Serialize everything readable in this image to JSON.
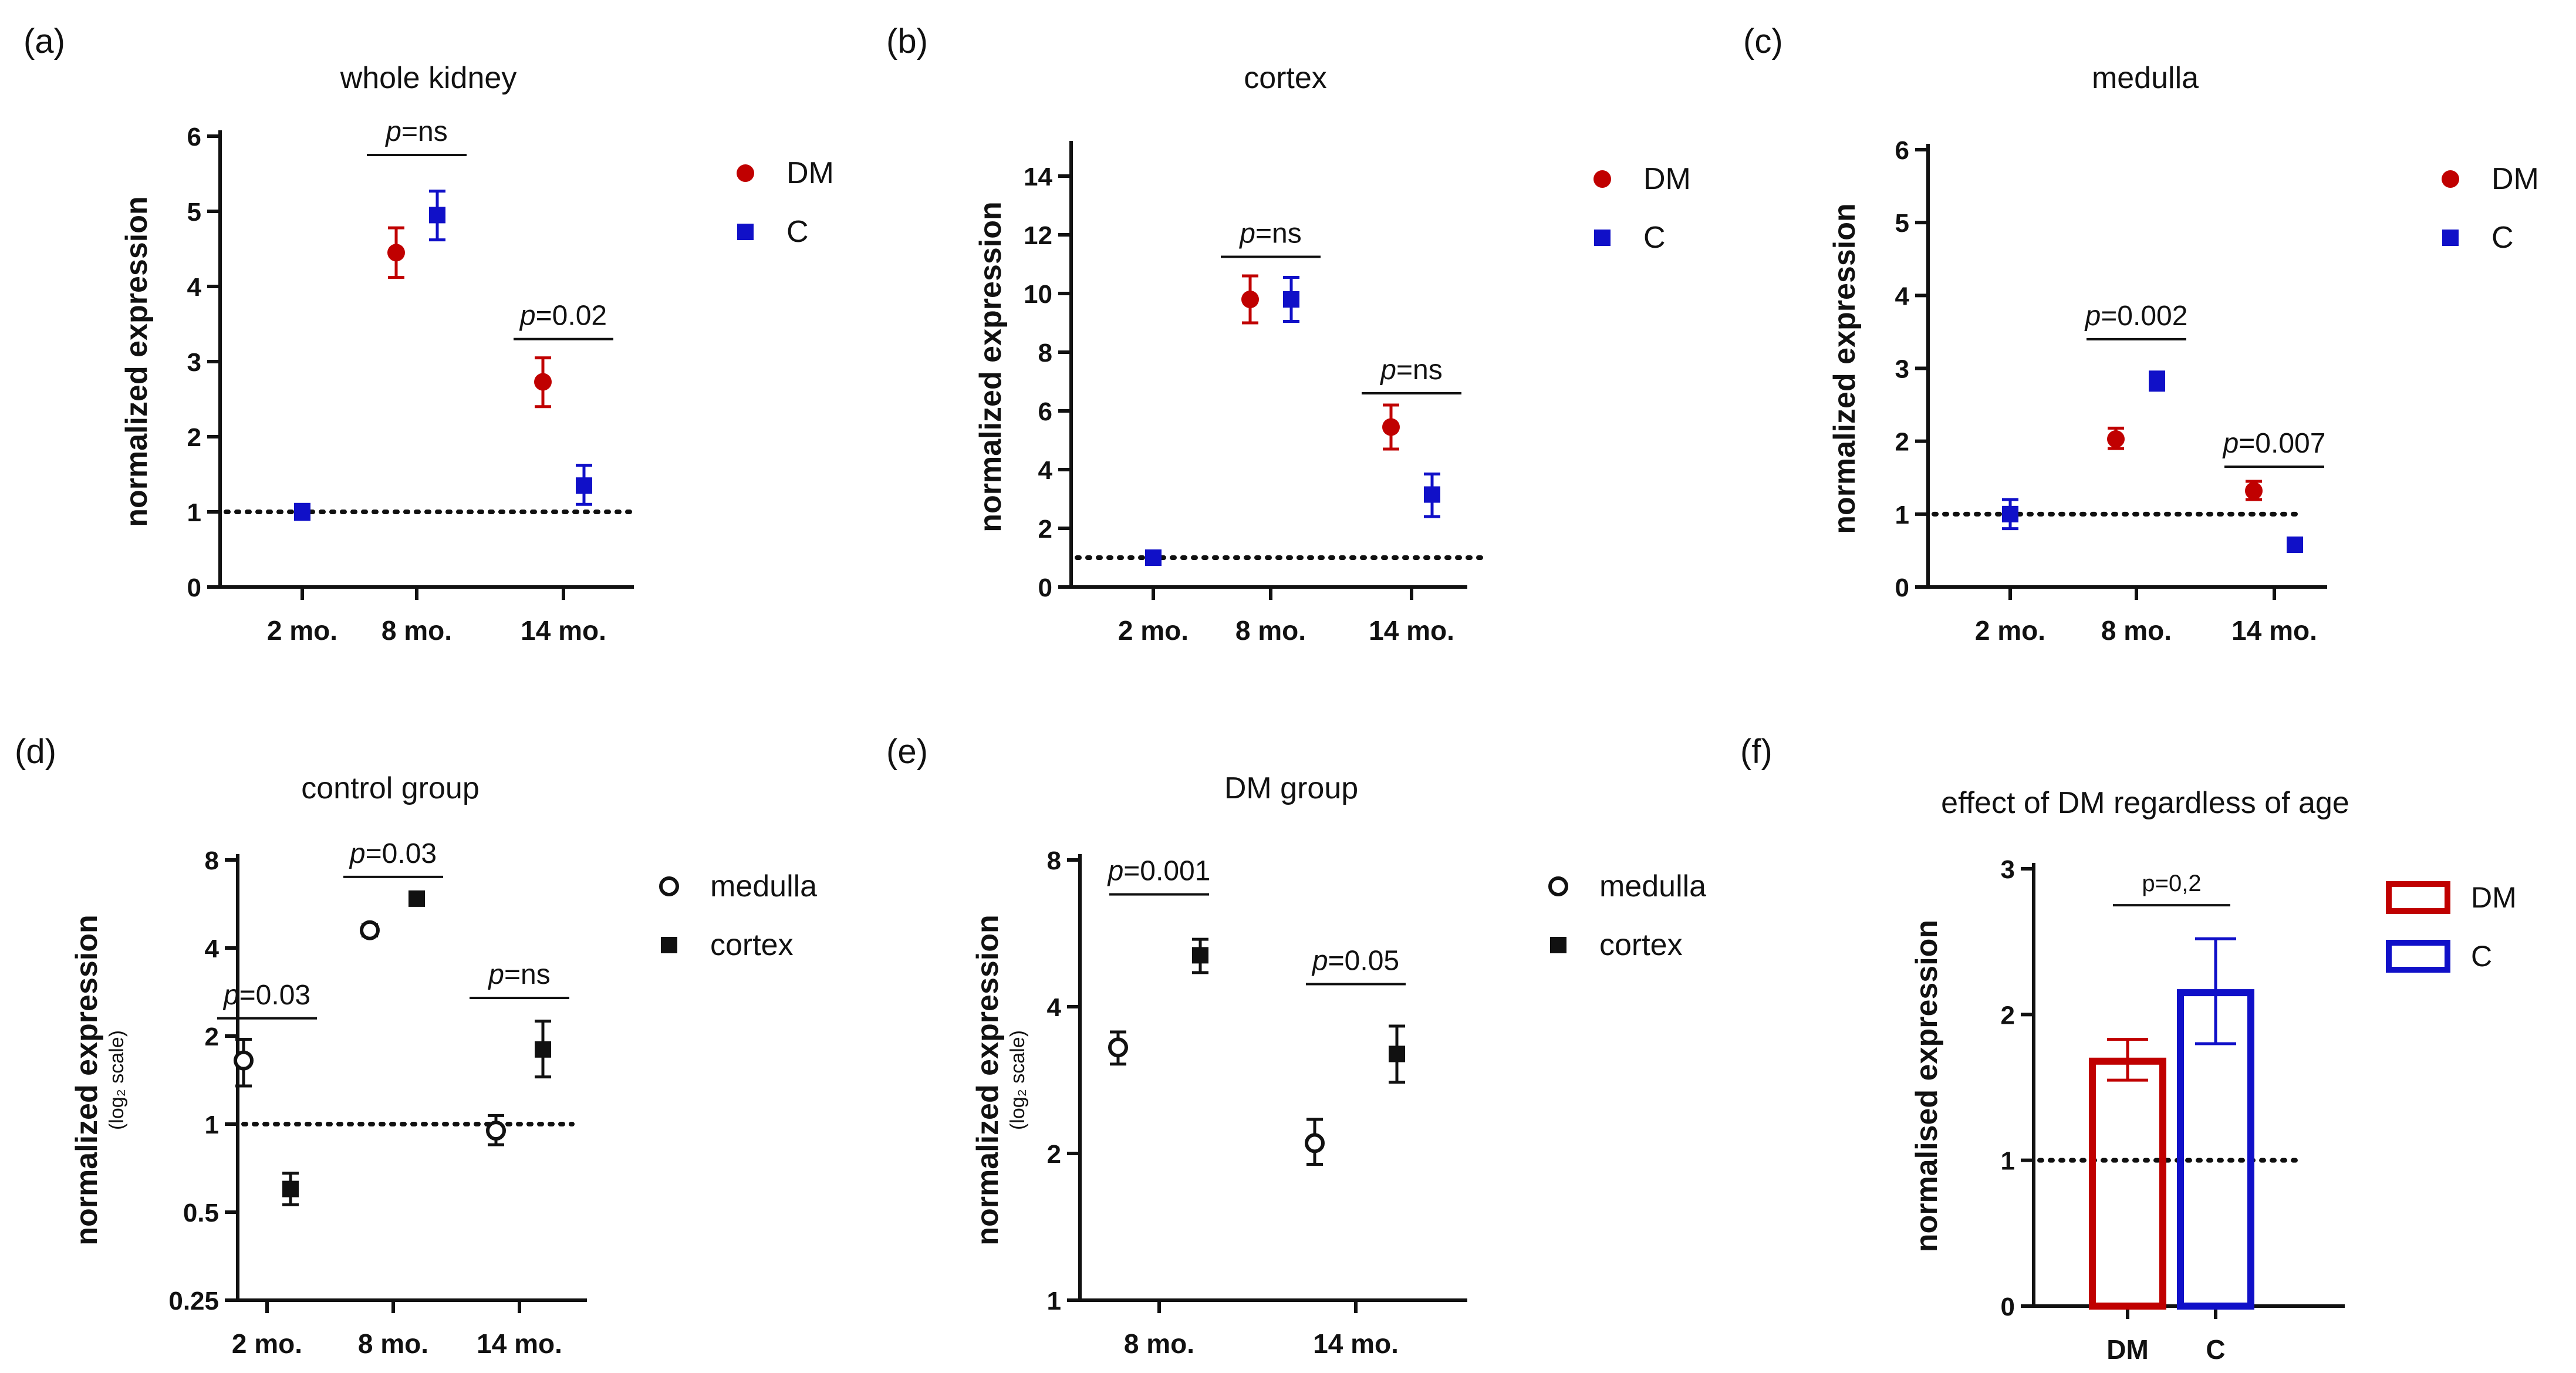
{
  "colors": {
    "dm": "#c00000",
    "c": "#1010c8",
    "black": "#111111"
  },
  "chart_data": [
    {
      "id": "a",
      "panel_label": "(a)",
      "type": "scatter",
      "title": "whole kidney",
      "ylabel": "normalized expression",
      "ylim": [
        0,
        6
      ],
      "scale": "linear",
      "yticks": [
        0,
        1,
        2,
        3,
        4,
        5,
        6
      ],
      "ytick_labels": [
        "0",
        "1",
        "2",
        "3",
        "4",
        "5",
        "6"
      ],
      "categories": [
        "2 mo.",
        "8 mo.",
        "14 mo."
      ],
      "reference_line": 1,
      "series": [
        {
          "name": "DM",
          "marker": "circle",
          "color": "#c00000",
          "points": [
            {
              "cat": 1,
              "y": 4.45,
              "err": [
                4.12,
                4.78
              ]
            },
            {
              "cat": 2,
              "y": 2.73,
              "err": [
                2.4,
                3.05
              ]
            }
          ]
        },
        {
          "name": "C",
          "marker": "square",
          "color": "#1010c8",
          "points": [
            {
              "cat": 0,
              "y": 1.0,
              "err": [
                0.9,
                1.1
              ]
            },
            {
              "cat": 1,
              "y": 4.95,
              "err": [
                4.62,
                5.27
              ]
            },
            {
              "cat": 2,
              "y": 1.35,
              "err": [
                1.1,
                1.62
              ]
            }
          ]
        }
      ],
      "annotations": [
        {
          "text": "ns",
          "prefix": "p=",
          "cat": 1,
          "y": 5.75
        },
        {
          "text": "0.02",
          "prefix": "p=",
          "cat": 2,
          "y": 3.3
        }
      ]
    },
    {
      "id": "b",
      "panel_label": "(b)",
      "type": "scatter",
      "title": "cortex",
      "ylabel": "normalized expression",
      "ylim": [
        0,
        15
      ],
      "scale": "linear",
      "yticks": [
        0,
        2,
        4,
        6,
        8,
        10,
        12,
        14
      ],
      "ytick_labels": [
        "0",
        "2",
        "4",
        "6",
        "8",
        "10",
        "12",
        "14"
      ],
      "categories": [
        "2 mo.",
        "8 mo.",
        "14 mo."
      ],
      "reference_line": 1,
      "series": [
        {
          "name": "DM",
          "marker": "circle",
          "color": "#c00000",
          "points": [
            {
              "cat": 1,
              "y": 9.8,
              "err": [
                9.0,
                10.6
              ]
            },
            {
              "cat": 2,
              "y": 5.45,
              "err": [
                4.7,
                6.2
              ]
            }
          ]
        },
        {
          "name": "C",
          "marker": "square",
          "color": "#1010c8",
          "points": [
            {
              "cat": 0,
              "y": 1.0,
              "err": [
                0.9,
                1.1
              ]
            },
            {
              "cat": 1,
              "y": 9.8,
              "err": [
                9.05,
                10.55
              ]
            },
            {
              "cat": 2,
              "y": 3.15,
              "err": [
                2.4,
                3.85
              ]
            }
          ]
        }
      ],
      "annotations": [
        {
          "text": "ns",
          "prefix": "p=",
          "cat": 1,
          "y": 11.25
        },
        {
          "text": "ns",
          "prefix": "p=",
          "cat": 2,
          "y": 6.6
        }
      ]
    },
    {
      "id": "c",
      "panel_label": "(c)",
      "type": "scatter",
      "title": "medulla",
      "ylabel": "normalized expression",
      "ylim": [
        0,
        6
      ],
      "scale": "linear",
      "yticks": [
        0,
        1,
        2,
        3,
        4,
        5,
        6
      ],
      "ytick_labels": [
        "0",
        "1",
        "2",
        "3",
        "4",
        "5",
        "6"
      ],
      "categories": [
        "2 mo.",
        "8 mo.",
        "14 mo."
      ],
      "reference_line": 1,
      "series": [
        {
          "name": "DM",
          "marker": "circle",
          "color": "#c00000",
          "points": [
            {
              "cat": 1,
              "y": 2.03,
              "err": [
                1.9,
                2.18
              ]
            },
            {
              "cat": 2,
              "y": 1.32,
              "err": [
                1.2,
                1.45
              ]
            }
          ]
        },
        {
          "name": "C",
          "marker": "square",
          "color": "#1010c8",
          "points": [
            {
              "cat": 0,
              "y": 1.0,
              "err": [
                0.8,
                1.2
              ]
            },
            {
              "cat": 1,
              "y": 2.82,
              "err": [
                2.7,
                2.95
              ]
            },
            {
              "cat": 2,
              "y": 0.58,
              "err": [
                0.53,
                0.63
              ]
            }
          ]
        }
      ],
      "annotations": [
        {
          "text": "0.002",
          "prefix": "p=",
          "cat": 1,
          "y": 3.4
        },
        {
          "text": "0.007",
          "prefix": "p=",
          "cat": 2,
          "y": 1.65
        }
      ]
    },
    {
      "id": "d",
      "panel_label": "(d)",
      "type": "scatter",
      "title": "control group",
      "ylabel": "normalized expression",
      "ylabel_sub": "(log₂ scale)",
      "ylim": [
        0.25,
        8
      ],
      "scale": "log2",
      "yticks": [
        0.25,
        0.5,
        1,
        2,
        4,
        8
      ],
      "ytick_labels": [
        "0.25",
        "0.5",
        "1",
        "2",
        "4",
        "8"
      ],
      "categories": [
        "2 mo.",
        "8 mo.",
        "14 mo."
      ],
      "reference_line": 1,
      "series": [
        {
          "name": "medulla",
          "marker": "open-circle",
          "color": "#111111",
          "points": [
            {
              "cat": 0,
              "y": 1.65,
              "err": [
                1.35,
                1.95
              ]
            },
            {
              "cat": 1,
              "y": 4.6,
              "err": [
                4.4,
                4.8
              ]
            },
            {
              "cat": 2,
              "y": 0.95,
              "err": [
                0.85,
                1.07
              ]
            }
          ]
        },
        {
          "name": "cortex",
          "marker": "square",
          "color": "#111111",
          "points": [
            {
              "cat": 0,
              "y": 0.6,
              "err": [
                0.53,
                0.68
              ]
            },
            {
              "cat": 1,
              "y": 5.9,
              "err": [
                5.6,
                6.2
              ]
            },
            {
              "cat": 2,
              "y": 1.8,
              "err": [
                1.45,
                2.25
              ]
            }
          ]
        }
      ],
      "annotations": [
        {
          "text": "0.03",
          "prefix": "p=",
          "cat": 0,
          "y": 2.3
        },
        {
          "text": "0.03",
          "prefix": "p=",
          "cat": 1,
          "y": 7.0
        },
        {
          "text": "ns",
          "prefix": "p=",
          "cat": 2,
          "y": 2.7
        }
      ]
    },
    {
      "id": "e",
      "panel_label": "(e)",
      "type": "scatter",
      "title": "DM group",
      "ylabel": "normalized expression",
      "ylabel_sub": "(log₂ scale)",
      "ylim": [
        1,
        8
      ],
      "scale": "log2",
      "yticks": [
        1,
        2,
        4,
        8
      ],
      "ytick_labels": [
        "1",
        "2",
        "4",
        "8"
      ],
      "categories": [
        "8 mo.",
        "14 mo."
      ],
      "reference_line": null,
      "series": [
        {
          "name": "medulla",
          "marker": "open-circle",
          "color": "#111111",
          "points": [
            {
              "cat": 0,
              "y": 3.3,
              "err": [
                3.05,
                3.55
              ]
            },
            {
              "cat": 1,
              "y": 2.1,
              "err": [
                1.9,
                2.35
              ]
            }
          ]
        },
        {
          "name": "cortex",
          "marker": "square",
          "color": "#111111",
          "points": [
            {
              "cat": 0,
              "y": 5.1,
              "err": [
                4.7,
                5.5
              ]
            },
            {
              "cat": 1,
              "y": 3.2,
              "err": [
                2.8,
                3.65
              ]
            }
          ]
        }
      ],
      "annotations": [
        {
          "text": "0.001",
          "prefix": "p=",
          "cat": 0,
          "y": 6.8
        },
        {
          "text": "0.05",
          "prefix": "p=",
          "cat": 1,
          "y": 4.45
        }
      ]
    },
    {
      "id": "f",
      "panel_label": "(f)",
      "type": "bar",
      "title": "effect of DM regardless of age",
      "ylabel": "normalised expression",
      "ylim": [
        0,
        3
      ],
      "scale": "linear",
      "yticks": [
        0,
        1,
        2,
        3
      ],
      "ytick_labels": [
        "0",
        "1",
        "2",
        "3"
      ],
      "categories": [
        "DM",
        "C"
      ],
      "reference_line": 1,
      "series": [
        {
          "name": "DM",
          "color": "#c00000",
          "value": 1.68,
          "err": [
            1.55,
            1.83
          ]
        },
        {
          "name": "C",
          "color": "#1010c8",
          "value": 2.15,
          "err": [
            1.8,
            2.52
          ]
        }
      ],
      "annotations": [
        {
          "text": "p=0,2",
          "prefix": "",
          "cat": 0.5,
          "y": 2.75
        }
      ]
    }
  ]
}
